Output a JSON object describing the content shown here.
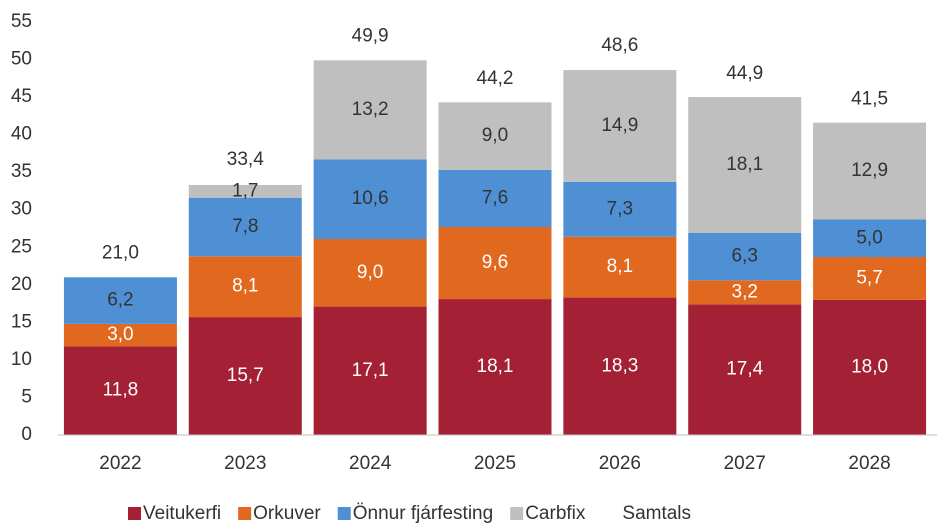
{
  "chart_data": {
    "type": "bar",
    "stacked": true,
    "categories": [
      "2022",
      "2023",
      "2024",
      "2025",
      "2026",
      "2027",
      "2028"
    ],
    "series": [
      {
        "name": "Veitukerfi",
        "color": "#A32035",
        "label_color": "#ffffff",
        "values": [
          11.8,
          15.7,
          17.1,
          18.1,
          18.3,
          17.4,
          18.0
        ],
        "value_labels": [
          "11,8",
          "15,7",
          "17,1",
          "18,1",
          "18,3",
          "17,4",
          "18,0"
        ]
      },
      {
        "name": "Orkuver",
        "color": "#E0691F",
        "label_color": "#ffffff",
        "values": [
          3.0,
          8.1,
          9.0,
          9.6,
          8.1,
          3.2,
          5.7
        ],
        "value_labels": [
          "3,0",
          "8,1",
          "9,0",
          "9,6",
          "8,1",
          "3,2",
          "5,7"
        ]
      },
      {
        "name": "Önnur fjárfesting",
        "color": "#4F8FD3",
        "label_color": "#333333",
        "values": [
          6.2,
          7.8,
          10.6,
          7.6,
          7.3,
          6.3,
          5.0
        ],
        "value_labels": [
          "6,2",
          "7,8",
          "10,6",
          "7,6",
          "7,3",
          "6,3",
          "5,0"
        ]
      },
      {
        "name": "Carbfix",
        "color": "#BFBFBF",
        "label_color": "#333333",
        "values": [
          null,
          1.7,
          13.2,
          9.0,
          14.9,
          18.1,
          12.9
        ],
        "value_labels": [
          null,
          "1,7",
          "13,2",
          "9,0",
          "14,9",
          "18,1",
          "12,9"
        ]
      },
      {
        "name": "Samtals",
        "kind": "total",
        "label_color": "#333333",
        "values": [
          21.0,
          33.4,
          49.9,
          44.2,
          48.6,
          44.9,
          41.5
        ],
        "value_labels": [
          "21,0",
          "33,4",
          "49,9",
          "44,2",
          "48,6",
          "44,9",
          "41,5"
        ]
      }
    ],
    "ylim": [
      0,
      55
    ],
    "yticks": [
      0,
      5,
      10,
      15,
      20,
      25,
      30,
      35,
      40,
      45,
      50,
      55
    ],
    "grid": false,
    "legend": "bottom"
  }
}
